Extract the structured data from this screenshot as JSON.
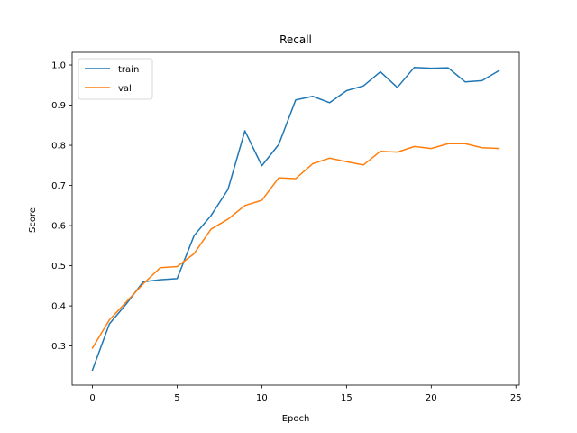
{
  "chart_data": {
    "type": "line",
    "title": "Recall",
    "xlabel": "Epoch",
    "ylabel": "Score",
    "xlim": [
      -1.2,
      25.2
    ],
    "ylim": [
      0.2025,
      1.0315
    ],
    "x_ticks": [
      0,
      5,
      10,
      15,
      20,
      25
    ],
    "y_ticks": [
      0.3,
      0.4,
      0.5,
      0.6,
      0.7,
      0.8,
      0.9,
      1.0
    ],
    "x_tick_labels": [
      "0",
      "5",
      "10",
      "15",
      "20",
      "25"
    ],
    "y_tick_labels": [
      "0.3",
      "0.4",
      "0.5",
      "0.6",
      "0.7",
      "0.8",
      "0.9",
      "1.0"
    ],
    "grid": false,
    "legend_position": "top-left",
    "x": [
      0,
      1,
      2,
      3,
      4,
      5,
      6,
      7,
      8,
      9,
      10,
      11,
      12,
      13,
      14,
      15,
      16,
      17,
      18,
      19,
      20,
      21,
      22,
      23,
      24
    ],
    "series": [
      {
        "name": "train",
        "color": "#1f77b4",
        "values": [
          0.24,
          0.355,
          0.405,
          0.46,
          0.465,
          0.468,
          0.575,
          0.625,
          0.69,
          0.836,
          0.749,
          0.802,
          0.913,
          0.922,
          0.906,
          0.936,
          0.948,
          0.983,
          0.944,
          0.994,
          0.992,
          0.993,
          0.958,
          0.961,
          0.986
        ]
      },
      {
        "name": "val",
        "color": "#ff7f0e",
        "values": [
          0.295,
          0.365,
          0.41,
          0.455,
          0.495,
          0.498,
          0.53,
          0.591,
          0.616,
          0.65,
          0.663,
          0.719,
          0.717,
          0.754,
          0.768,
          0.759,
          0.751,
          0.785,
          0.783,
          0.797,
          0.792,
          0.804,
          0.804,
          0.794,
          0.792
        ]
      }
    ]
  }
}
